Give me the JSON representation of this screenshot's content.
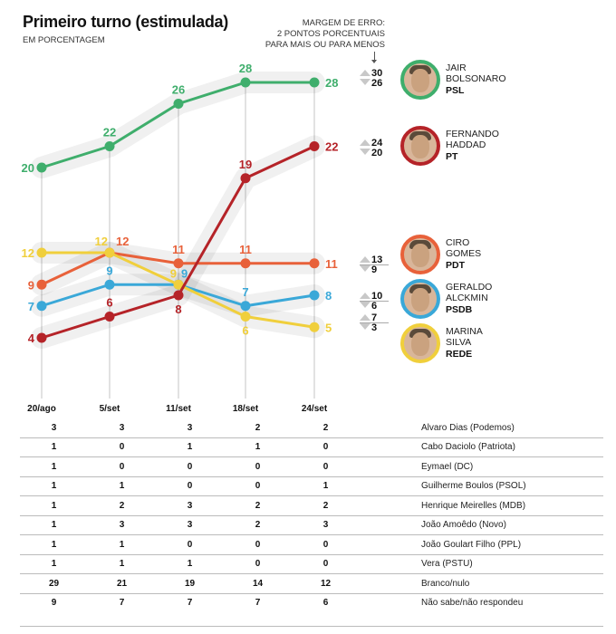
{
  "header": {
    "title": "Primeiro turno (estimulada)",
    "subtitle": "EM PORCENTAGEM",
    "margin_note": [
      "MARGEM DE ERRO:",
      "2 PONTOS PORCENTUAIS",
      "PARA MAIS OU PARA MENOS"
    ]
  },
  "chart_data": {
    "type": "line",
    "title": "Primeiro turno (estimulada)",
    "subtitle": "EM PORCENTAGEM",
    "x": [
      "20/ago",
      "5/set",
      "11/set",
      "18/set",
      "24/set"
    ],
    "xlabel": "",
    "ylabel": "%",
    "ylim": [
      4,
      28
    ],
    "grid": "vertical lines at each date",
    "series": [
      {
        "name": "Jair Bolsonaro",
        "party": "PSL",
        "color": "#3fae6c",
        "values": [
          20,
          22,
          26,
          28,
          28
        ],
        "range_last": [
          30,
          26
        ]
      },
      {
        "name": "Fernando Haddad",
        "party": "PT",
        "color": "#b52328",
        "values": [
          4,
          6,
          8,
          19,
          22
        ],
        "range_last": [
          24,
          20
        ]
      },
      {
        "name": "Ciro Gomes",
        "party": "PDT",
        "color": "#e8613a",
        "values": [
          9,
          12,
          11,
          11,
          11
        ],
        "range_last": [
          13,
          9
        ]
      },
      {
        "name": "Geraldo Alckmin",
        "party": "PSDB",
        "color": "#3aa8d8",
        "values": [
          7,
          9,
          9,
          7,
          8
        ],
        "range_last": [
          10,
          6
        ]
      },
      {
        "name": "Marina Silva",
        "party": "REDE",
        "color": "#f0cf3c",
        "values": [
          12,
          12,
          9,
          6,
          5
        ],
        "range_last": [
          7,
          3
        ]
      }
    ]
  },
  "candidates": [
    {
      "first": "JAIR",
      "last": "BOLSONARO",
      "party": "PSL",
      "color": "#3fae6c",
      "hi": "30",
      "lo": "26"
    },
    {
      "first": "FERNANDO",
      "last": "HADDAD",
      "party": "PT",
      "color": "#b52328",
      "hi": "24",
      "lo": "20"
    },
    {
      "first": "CIRO",
      "last": "GOMES",
      "party": "PDT",
      "color": "#e8613a",
      "hi": "13",
      "lo": "9"
    },
    {
      "first": "GERALDO",
      "last": "ALCKMIN",
      "party": "PSDB",
      "color": "#3aa8d8",
      "hi": "10",
      "lo": "6"
    },
    {
      "first": "MARINA",
      "last": "SILVA",
      "party": "REDE",
      "color": "#f0cf3c",
      "hi": "7",
      "lo": "3"
    }
  ],
  "table": {
    "rows": [
      {
        "label": "Alvaro Dias (Podemos)",
        "values": [
          "3",
          "3",
          "3",
          "2",
          "2"
        ]
      },
      {
        "label": "Cabo Daciolo (Patriota)",
        "values": [
          "1",
          "0",
          "1",
          "1",
          "0"
        ]
      },
      {
        "label": "Eymael (DC)",
        "values": [
          "1",
          "0",
          "0",
          "0",
          "0"
        ]
      },
      {
        "label": "Guilherme Boulos (PSOL)",
        "values": [
          "1",
          "1",
          "0",
          "0",
          "1"
        ]
      },
      {
        "label": "Henrique Meirelles (MDB)",
        "values": [
          "1",
          "2",
          "3",
          "2",
          "2"
        ]
      },
      {
        "label": "João Amoêdo (Novo)",
        "values": [
          "1",
          "3",
          "3",
          "2",
          "3"
        ]
      },
      {
        "label": "João Goulart Filho (PPL)",
        "values": [
          "1",
          "1",
          "0",
          "0",
          "0"
        ]
      },
      {
        "label": "Vera (PSTU)",
        "values": [
          "1",
          "1",
          "1",
          "0",
          "0"
        ]
      },
      {
        "label": "Branco/nulo",
        "values": [
          "29",
          "21",
          "19",
          "14",
          "12"
        ]
      },
      {
        "label": "Não sabe/não respondeu",
        "values": [
          "9",
          "7",
          "7",
          "7",
          "6"
        ]
      }
    ]
  }
}
